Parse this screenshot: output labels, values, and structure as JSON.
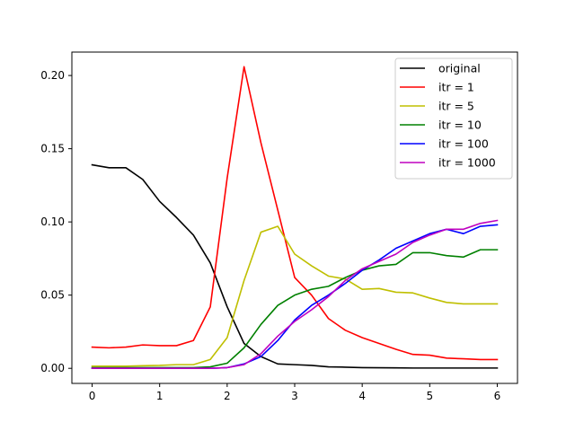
{
  "chart_data": {
    "type": "line",
    "title": "",
    "xlabel": "",
    "ylabel": "",
    "xlim": [
      -0.3,
      6.3
    ],
    "ylim": [
      -0.0103,
      0.216
    ],
    "xticks": [
      0,
      1,
      2,
      3,
      4,
      5,
      6
    ],
    "xtick_labels": [
      "0",
      "1",
      "2",
      "3",
      "4",
      "5",
      "6"
    ],
    "yticks": [
      0.0,
      0.05,
      0.1,
      0.15,
      0.2
    ],
    "ytick_labels": [
      "0.00",
      "0.05",
      "0.10",
      "0.15",
      "0.20"
    ],
    "grid": false,
    "legend_position": "top-right",
    "x": [
      0,
      0.25,
      0.5,
      0.75,
      1,
      1.25,
      1.5,
      1.75,
      2,
      2.25,
      2.5,
      2.75,
      3,
      3.25,
      3.5,
      3.75,
      4,
      4.25,
      4.5,
      4.75,
      5,
      5.25,
      5.5,
      5.75,
      6
    ],
    "series": [
      {
        "name": "original",
        "color": "#000000",
        "values": [
          0.139,
          0.137,
          0.137,
          0.129,
          0.114,
          0.103,
          0.091,
          0.072,
          0.042,
          0.017,
          0.008,
          0.003,
          0.0025,
          0.002,
          0.001,
          0.0008,
          0.0005,
          0.0004,
          0.0003,
          0.0002,
          0.0002,
          0.0002,
          0.0002,
          0.0002,
          0.0002
        ]
      },
      {
        "name": "itr = 1",
        "color": "#ff0000",
        "values": [
          0.0145,
          0.014,
          0.0145,
          0.016,
          0.0155,
          0.0155,
          0.019,
          0.042,
          0.13,
          0.206,
          0.154,
          0.108,
          0.062,
          0.05,
          0.034,
          0.026,
          0.021,
          0.017,
          0.013,
          0.0095,
          0.009,
          0.007,
          0.0065,
          0.006,
          0.006
        ]
      },
      {
        "name": "itr = 5",
        "color": "#bfbf00",
        "values": [
          0.0015,
          0.0015,
          0.0015,
          0.0018,
          0.002,
          0.0025,
          0.0025,
          0.006,
          0.021,
          0.06,
          0.093,
          0.097,
          0.078,
          0.07,
          0.063,
          0.061,
          0.054,
          0.0545,
          0.052,
          0.0515,
          0.048,
          0.045,
          0.044,
          0.044,
          0.044
        ]
      },
      {
        "name": "itr = 10",
        "color": "#008000",
        "values": [
          0.0005,
          0.0005,
          0.0005,
          0.0005,
          0.0005,
          0.0005,
          0.0005,
          0.001,
          0.0035,
          0.014,
          0.03,
          0.043,
          0.05,
          0.054,
          0.056,
          0.062,
          0.067,
          0.07,
          0.071,
          0.079,
          0.079,
          0.077,
          0.076,
          0.081,
          0.081
        ]
      },
      {
        "name": "itr = 100",
        "color": "#0000ff",
        "values": [
          0.0,
          0.0,
          0.0,
          0.0,
          0.0,
          0.0,
          0.0,
          0.0,
          0.0005,
          0.003,
          0.008,
          0.019,
          0.033,
          0.043,
          0.05,
          0.058,
          0.067,
          0.074,
          0.082,
          0.087,
          0.092,
          0.095,
          0.092,
          0.097,
          0.098
        ]
      },
      {
        "name": "itr = 1000",
        "color": "#bf00bf",
        "values": [
          0.0,
          0.0,
          0.0,
          0.0,
          0.0,
          0.0,
          0.0,
          0.0,
          0.0005,
          0.0025,
          0.01,
          0.022,
          0.032,
          0.04,
          0.049,
          0.06,
          0.068,
          0.073,
          0.078,
          0.086,
          0.091,
          0.095,
          0.095,
          0.099,
          0.101
        ]
      }
    ]
  }
}
